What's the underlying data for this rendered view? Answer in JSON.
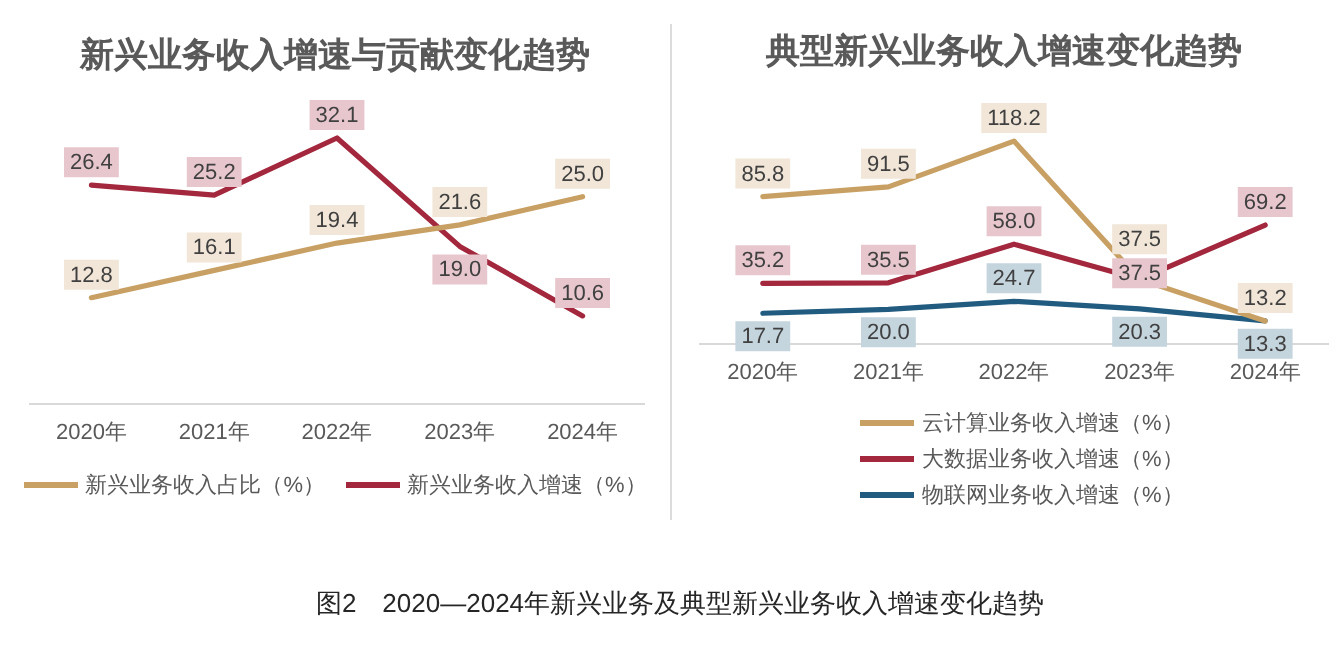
{
  "chart_data": [
    {
      "type": "line",
      "title": "新兴业务收入增速与贡献变化趋势",
      "categories": [
        "2020年",
        "2021年",
        "2022年",
        "2023年",
        "2024年"
      ],
      "series": [
        {
          "name": "新兴业务收入占比（%）",
          "color": "#c8a064",
          "values": [
            12.8,
            16.1,
            19.4,
            21.6,
            25.0
          ],
          "value_labels": [
            "12.8",
            "16.1",
            "19.4",
            "21.6",
            "25.0"
          ]
        },
        {
          "name": "新兴业务收入增速（%）",
          "color": "#a3283d",
          "values": [
            26.4,
            25.2,
            32.1,
            19.0,
            10.6
          ],
          "value_labels": [
            "26.4",
            "25.2",
            "32.1",
            "19.0",
            "10.6"
          ]
        }
      ],
      "legend": "bottom",
      "grid": false,
      "tick_labels": "x",
      "annotations": [
        "图2　2020—2024年新兴业务及典型新兴业务收入增速变化趋势"
      ]
    },
    {
      "type": "line",
      "title": "典型新兴业务收入增速变化趋势",
      "categories": [
        "2020年",
        "2021年",
        "2022年",
        "2023年",
        "2024年"
      ],
      "series": [
        {
          "name": "云计算业务收入增速（%）",
          "color": "#c8a064",
          "values": [
            85.8,
            91.5,
            118.2,
            37.5,
            13.2
          ],
          "value_labels": [
            "85.8",
            "91.5",
            "118.2",
            "37.5",
            "13.2"
          ]
        },
        {
          "name": "大数据业务收入增速（%）",
          "color": "#a3283d",
          "values": [
            35.2,
            35.5,
            58.0,
            37.5,
            69.2
          ],
          "value_labels": [
            "35.2",
            "35.5",
            "58.0",
            "37.5",
            "69.2"
          ]
        },
        {
          "name": "物联网业务收入增速（%）",
          "color": "#215c80",
          "values": [
            17.7,
            20.0,
            24.7,
            20.3,
            13.3
          ],
          "value_labels": [
            "17.7",
            "20.0",
            "24.7",
            "20.3",
            "13.3"
          ]
        }
      ],
      "legend": "bottom",
      "grid": false,
      "tick_labels": "x"
    }
  ]
}
